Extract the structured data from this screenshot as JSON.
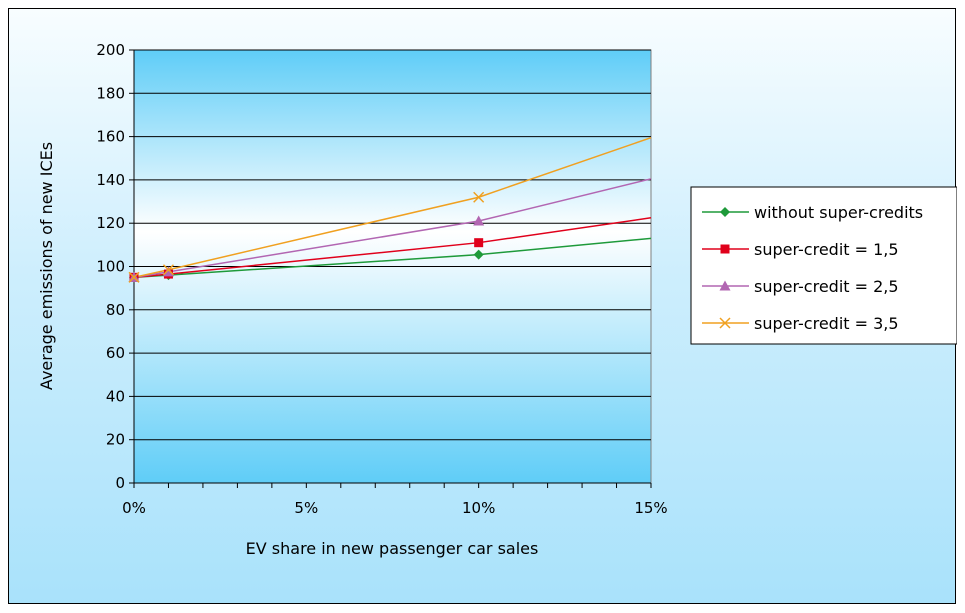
{
  "chart_data": {
    "type": "line",
    "title": "",
    "xlabel": "EV share in new passenger car sales",
    "ylabel": "Average emissions of new ICEs",
    "xlim": [
      0,
      15
    ],
    "ylim": [
      0,
      200
    ],
    "x_ticks": [
      0,
      5,
      10,
      15
    ],
    "x_tick_labels": [
      "0%",
      "5%",
      "10%",
      "15%"
    ],
    "y_ticks": [
      0,
      20,
      40,
      60,
      80,
      100,
      120,
      140,
      160,
      180,
      200
    ],
    "y_tick_labels": [
      "0",
      "20",
      "40",
      "60",
      "80",
      "100",
      "120",
      "140",
      "160",
      "180",
      "200"
    ],
    "grid": "horizontal",
    "legend_position": "right",
    "series": [
      {
        "name": "without super-credits",
        "color": "#1e9a3a",
        "marker": "diamond",
        "x": [
          0,
          1,
          10,
          15
        ],
        "values": [
          95,
          96,
          105.5,
          113
        ]
      },
      {
        "name": "super-credit = 1,5",
        "color": "#e0001b",
        "marker": "square",
        "x": [
          0,
          1,
          10,
          15
        ],
        "values": [
          95,
          96.5,
          111,
          122.5
        ]
      },
      {
        "name": "super-credit = 2,5",
        "color": "#b266b2",
        "marker": "triangle",
        "x": [
          0,
          1,
          10,
          15
        ],
        "values": [
          95,
          97.5,
          121,
          140.5
        ]
      },
      {
        "name": "super-credit = 3,5",
        "color": "#f0a020",
        "marker": "x",
        "x": [
          0,
          1,
          10,
          15
        ],
        "values": [
          95,
          98.5,
          132,
          159.5
        ]
      }
    ]
  }
}
